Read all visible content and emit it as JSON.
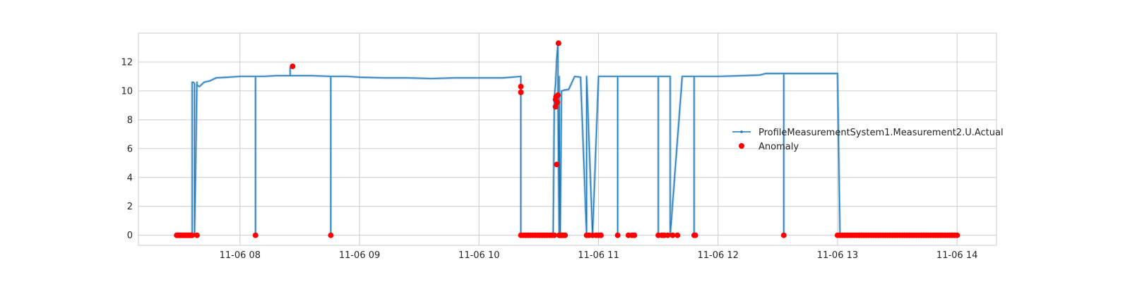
{
  "chart_data": {
    "type": "line",
    "title": "",
    "xlabel": "",
    "ylabel": "",
    "grid": true,
    "legend_position": "right",
    "x_ticks": [
      "11-06 08",
      "11-06 09",
      "11-06 10",
      "11-06 11",
      "11-06 12",
      "11-06 13",
      "11-06 14"
    ],
    "y_ticks": [
      "0",
      "2",
      "4",
      "6",
      "8",
      "10",
      "12"
    ],
    "xlim_hours": [
      7.15,
      14.33
    ],
    "ylim": [
      -0.7,
      14.0
    ],
    "colors": {
      "series": "#1f77b4",
      "anomaly": "#ff0000",
      "grid": "#cccccc",
      "axes": "#cccccc"
    },
    "series": [
      {
        "name": "ProfileMeasurementSystem1.Measurement2.U.Actual",
        "x_hours": [
          7.47,
          7.5,
          7.55,
          7.6,
          7.6,
          7.61,
          7.62,
          7.62,
          7.64,
          7.64,
          7.66,
          7.7,
          7.75,
          7.8,
          7.9,
          8.0,
          8.13,
          8.13,
          8.13,
          8.2,
          8.3,
          8.42,
          8.42,
          8.42,
          8.5,
          8.6,
          8.76,
          8.76,
          8.76,
          8.9,
          9.0,
          9.2,
          9.4,
          9.6,
          9.8,
          10.0,
          10.2,
          10.35,
          10.35,
          10.35,
          10.36,
          10.4,
          10.5,
          10.62,
          10.63,
          10.64,
          10.65,
          10.66,
          10.66,
          10.67,
          10.67,
          10.68,
          10.69,
          10.7,
          10.71,
          10.75,
          10.8,
          10.85,
          10.9,
          10.9,
          10.95,
          11.0,
          11.0,
          11.1,
          11.16,
          11.16,
          11.16,
          11.2,
          11.3,
          11.35,
          11.4,
          11.5,
          11.5,
          11.5,
          11.6,
          11.6,
          11.7,
          11.8,
          11.8,
          11.8,
          11.9,
          12.0,
          12.2,
          12.35,
          12.4,
          12.55,
          12.55,
          12.55,
          12.6,
          12.7,
          12.8,
          12.9,
          13.0,
          13.02,
          13.02,
          13.05,
          13.2,
          13.4,
          13.6,
          13.8,
          14.0
        ],
        "y": [
          0,
          0,
          0,
          0,
          10.6,
          10.6,
          10.5,
          0,
          10.6,
          10.4,
          10.3,
          10.6,
          10.7,
          10.9,
          10.95,
          11.0,
          11.0,
          0,
          11.0,
          11.0,
          11.05,
          11.05,
          11.6,
          11.05,
          11.05,
          11.05,
          11.0,
          0,
          11.0,
          11.0,
          10.95,
          10.9,
          10.9,
          10.85,
          10.9,
          10.9,
          10.9,
          11.0,
          0,
          0,
          0,
          0,
          0,
          0,
          9.5,
          10.5,
          12.2,
          13.3,
          9.2,
          0,
          11.0,
          0,
          10.0,
          10.0,
          10.05,
          10.1,
          11.0,
          10.95,
          0,
          11.0,
          0,
          11.0,
          11.0,
          11.0,
          11.0,
          0,
          11.0,
          11.0,
          11.0,
          11.0,
          11.0,
          11.0,
          0,
          11.0,
          11.0,
          0,
          11.0,
          11.0,
          0,
          11.0,
          11.0,
          11.0,
          11.05,
          11.1,
          11.2,
          11.2,
          0,
          11.2,
          11.2,
          11.2,
          11.2,
          11.2,
          11.2,
          0,
          0,
          0,
          0,
          0,
          0,
          0,
          0
        ]
      },
      {
        "name": "Anomaly",
        "marker": "dot",
        "x_hours": [
          7.47,
          7.48,
          7.49,
          7.5,
          7.51,
          7.52,
          7.53,
          7.54,
          7.55,
          7.56,
          7.57,
          7.58,
          7.59,
          7.6,
          7.64,
          8.13,
          8.44,
          8.76,
          10.35,
          10.35,
          10.35,
          10.37,
          10.39,
          10.41,
          10.43,
          10.45,
          10.47,
          10.49,
          10.51,
          10.53,
          10.55,
          10.57,
          10.59,
          10.61,
          10.63,
          10.64,
          10.64,
          10.645,
          10.65,
          10.655,
          10.66,
          10.665,
          10.67,
          10.675,
          10.68,
          10.69,
          10.7,
          10.71,
          10.72,
          10.9,
          10.92,
          10.95,
          10.98,
          11.0,
          11.02,
          11.16,
          11.25,
          11.28,
          11.3,
          11.5,
          11.53,
          11.55,
          11.58,
          11.62,
          11.66,
          11.8,
          11.81,
          12.55,
          13.0,
          13.02,
          13.04,
          13.06,
          13.08,
          13.1,
          13.12,
          13.14,
          13.16,
          13.18,
          13.2,
          13.22,
          13.24,
          13.26,
          13.28,
          13.3,
          13.32,
          13.34,
          13.36,
          13.38,
          13.4,
          13.42,
          13.44,
          13.46,
          13.48,
          13.5,
          13.52,
          13.54,
          13.56,
          13.58,
          13.6,
          13.62,
          13.64,
          13.66,
          13.68,
          13.7,
          13.72,
          13.74,
          13.76,
          13.78,
          13.8,
          13.82,
          13.84,
          13.86,
          13.88,
          13.9,
          13.92,
          13.94,
          13.96,
          13.98,
          14.0
        ],
        "y": [
          0,
          0,
          0,
          0,
          0,
          0,
          0,
          0,
          0,
          0,
          0,
          0,
          0,
          0,
          0,
          0,
          11.7,
          0,
          10.3,
          9.9,
          0,
          0,
          0,
          0,
          0,
          0,
          0,
          0,
          0,
          0,
          0,
          0,
          0,
          0,
          0,
          9.4,
          8.9,
          9.6,
          4.9,
          9.2,
          9.7,
          13.3,
          0,
          0,
          0,
          0,
          0,
          0,
          0,
          0,
          0,
          0,
          0,
          0,
          0,
          0,
          0,
          0,
          0,
          0,
          0,
          0,
          0,
          0,
          0,
          0,
          0,
          0,
          0,
          0,
          0,
          0,
          0,
          0,
          0,
          0,
          0,
          0,
          0,
          0,
          0,
          0,
          0,
          0,
          0,
          0,
          0,
          0,
          0,
          0,
          0,
          0,
          0,
          0,
          0,
          0,
          0,
          0,
          0,
          0,
          0,
          0,
          0,
          0,
          0,
          0,
          0,
          0,
          0,
          0,
          0,
          0,
          0,
          0,
          0,
          0,
          0,
          0,
          0
        ]
      }
    ]
  }
}
